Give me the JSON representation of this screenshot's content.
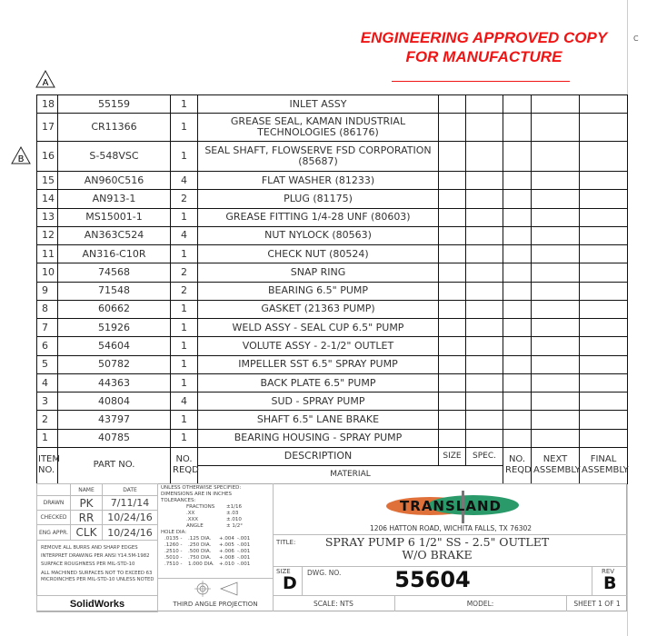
{
  "stamp": {
    "line1": "ENGINEERING APPROVED COPY",
    "line2": "FOR MANUFACTURE",
    "color": "#f01414"
  },
  "edge_label": "C",
  "revision_markers": [
    "A",
    "B"
  ],
  "bom": {
    "rows": [
      {
        "item": "18",
        "part": "55159",
        "qty": "1",
        "desc": "INLET ASSY"
      },
      {
        "item": "17",
        "part": "CR11366",
        "qty": "1",
        "desc": "GREASE SEAL, KAMAN INDUSTRIAL TECHNOLOGIES (86176)"
      },
      {
        "item": "16",
        "part": "S-548VSC",
        "qty": "1",
        "desc": "SEAL SHAFT, FLOWSERVE FSD CORPORATION (85687)"
      },
      {
        "item": "15",
        "part": "AN960C516",
        "qty": "4",
        "desc": "FLAT WASHER (81233)"
      },
      {
        "item": "14",
        "part": "AN913-1",
        "qty": "2",
        "desc": "PLUG (81175)"
      },
      {
        "item": "13",
        "part": "MS15001-1",
        "qty": "1",
        "desc": "GREASE FITTING 1/4-28 UNF (80603)"
      },
      {
        "item": "12",
        "part": "AN363C524",
        "qty": "4",
        "desc": "NUT NYLOCK (80563)"
      },
      {
        "item": "11",
        "part": "AN316-C10R",
        "qty": "1",
        "desc": "CHECK NUT (80524)"
      },
      {
        "item": "10",
        "part": "74568",
        "qty": "2",
        "desc": "SNAP RING"
      },
      {
        "item": "9",
        "part": "71548",
        "qty": "2",
        "desc": "BEARING 6.5\" PUMP"
      },
      {
        "item": "8",
        "part": "60662",
        "qty": "1",
        "desc": "GASKET (21363 PUMP)"
      },
      {
        "item": "7",
        "part": "51926",
        "qty": "1",
        "desc": "WELD ASSY - SEAL CUP 6.5\" PUMP"
      },
      {
        "item": "6",
        "part": "54604",
        "qty": "1",
        "desc": "VOLUTE ASSY - 2-1/2\" OUTLET"
      },
      {
        "item": "5",
        "part": "50782",
        "qty": "1",
        "desc": "IMPELLER SST 6.5\" SPRAY PUMP"
      },
      {
        "item": "4",
        "part": "44363",
        "qty": "1",
        "desc": "BACK PLATE 6.5\" PUMP"
      },
      {
        "item": "3",
        "part": "40804",
        "qty": "4",
        "desc": "SUD - SPRAY PUMP"
      },
      {
        "item": "2",
        "part": "43797",
        "qty": "1",
        "desc": "SHAFT 6.5\" LANE BRAKE"
      },
      {
        "item": "1",
        "part": "40785",
        "qty": "1",
        "desc": "BEARING HOUSING - SPRAY PUMP"
      }
    ],
    "headers": {
      "item": "ITEM NO.",
      "part": "PART NO.",
      "qty": "NO. REQD",
      "desc": "DESCRIPTION",
      "material": "MATERIAL",
      "size": "SIZE",
      "spec": "SPEC.",
      "noreqd": "NO. REQD",
      "next": "NEXT ASSEMBLY",
      "final": "FINAL ASSEMBLY"
    }
  },
  "title_block": {
    "name_hdr": "NAME",
    "date_hdr": "DATE",
    "drawn_label": "DRAWN",
    "drawn_name": "PK",
    "drawn_date": "7/11/14",
    "checked_label": "CHECKED",
    "checked_name": "RR",
    "checked_date": "10/24/16",
    "eng_label": "ENG APPR.",
    "eng_name": "CLK",
    "eng_date": "10/24/16",
    "notes": [
      "REMOVE ALL BURRS AND SHARP EDGES",
      "INTERPRET DRAWING PER ANSI Y14.5M-1982",
      "SURFACE ROUGHNESS PER MIL-STD-10",
      "ALL MACHINED SURFACES NOT TO EXCEED 63 MICROINCHES PER MIL-STD-10 UNLESS NOTED"
    ],
    "software": "SolidWorks",
    "tol_header": "UNLESS OTHERWISE SPECIFIED: DIMENSIONS ARE IN INCHES",
    "tol_label": "TOLERANCES:",
    "tolerances": [
      [
        "FRACTIONS",
        "±1/16"
      ],
      [
        ".XX",
        "±.03"
      ],
      [
        ".XXX",
        "±.010"
      ],
      [
        "ANGLE",
        "± 1/2°"
      ]
    ],
    "hole_label": "HOLE DIA:",
    "holes": [
      [
        ".0135 -",
        ".125 DIA.",
        "+.004",
        "-.001"
      ],
      [
        ".1260 -",
        ".250 DIA.",
        "+.005",
        "-.001"
      ],
      [
        ".2510 -",
        ".500 DIA.",
        "+.006",
        "-.001"
      ],
      [
        ".5010 -",
        ".750 DIA.",
        "+.008",
        "-.001"
      ],
      [
        ".7510 -",
        "1.000 DIA.",
        "+.010",
        "-.001"
      ]
    ],
    "projection": "THIRD ANGLE PROJECTION",
    "company": "TRANSLAND",
    "address": "1206 HATTON ROAD, WICHITA FALLS, TX 76302",
    "title_label": "TITLE:",
    "title_line1": "SPRAY PUMP 6 1/2\" SS - 2.5\" OUTLET",
    "title_line2": "W/O BRAKE",
    "size_label": "SIZE",
    "size": "D",
    "dwg_label": "DWG.  NO.",
    "dwg_no": "55604",
    "rev_label": "REV",
    "rev": "B",
    "scale": "SCALE: NTS",
    "model": "MODEL:",
    "sheet": "SHEET 1 OF 1",
    "logo_colors": {
      "orange": "#e0703a",
      "green": "#2a9a6a"
    }
  }
}
